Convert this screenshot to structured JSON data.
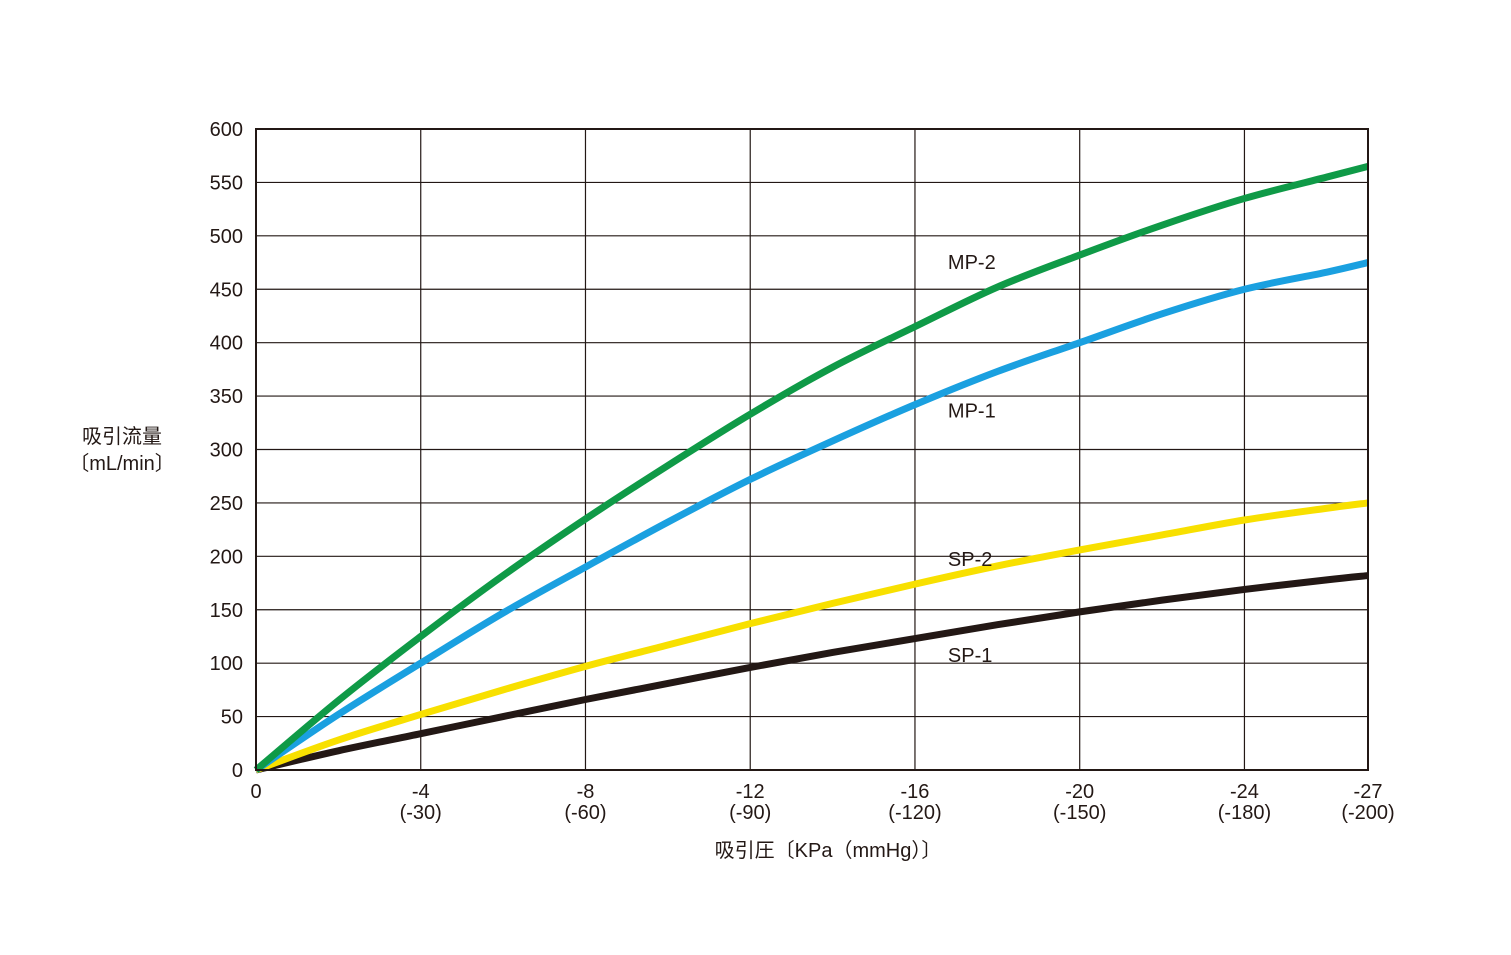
{
  "chart_data": {
    "type": "line",
    "title": "",
    "ylabel_line1": "吸引流量",
    "ylabel_line2": "〔mL/min〕",
    "xlabel": "吸引圧〔KPa（mmHg）〕",
    "ylim": [
      0,
      600
    ],
    "yticks": [
      0,
      50,
      100,
      150,
      200,
      250,
      300,
      350,
      400,
      450,
      500,
      550,
      600
    ],
    "xlim": [
      0,
      -27
    ],
    "xticks": [
      {
        "kpa": 0,
        "label": "0",
        "sub": ""
      },
      {
        "kpa": -4,
        "label": "-4",
        "sub": "(-30)"
      },
      {
        "kpa": -8,
        "label": "-8",
        "sub": "(-60)"
      },
      {
        "kpa": -12,
        "label": "-12",
        "sub": "(-90)"
      },
      {
        "kpa": -16,
        "label": "-16",
        "sub": "(-120)"
      },
      {
        "kpa": -20,
        "label": "-20",
        "sub": "(-150)"
      },
      {
        "kpa": -24,
        "label": "-24",
        "sub": "(-180)"
      },
      {
        "kpa": -27,
        "label": "-27",
        "sub": "(-200)"
      }
    ],
    "grid": true,
    "series": [
      {
        "name": "MP-2",
        "color": "#0f9a47",
        "x": [
          0,
          -2,
          -4,
          -6,
          -8,
          -10,
          -12,
          -14,
          -16,
          -18,
          -20,
          -22,
          -24,
          -26,
          -27
        ],
        "values": [
          0,
          65,
          125,
          182,
          235,
          285,
          333,
          377,
          415,
          452,
          482,
          510,
          535,
          555,
          565
        ]
      },
      {
        "name": "MP-1",
        "color": "#1aa0e0",
        "x": [
          0,
          -2,
          -4,
          -6,
          -8,
          -10,
          -12,
          -14,
          -16,
          -18,
          -20,
          -22,
          -24,
          -26,
          -27
        ],
        "values": [
          0,
          52,
          100,
          147,
          190,
          232,
          272,
          308,
          342,
          373,
          400,
          427,
          450,
          466,
          475
        ]
      },
      {
        "name": "SP-2",
        "color": "#f8e000",
        "x": [
          0,
          -2,
          -4,
          -6,
          -8,
          -10,
          -12,
          -14,
          -16,
          -18,
          -20,
          -22,
          -24,
          -26,
          -27
        ],
        "values": [
          0,
          28,
          52,
          75,
          97,
          117,
          137,
          156,
          174,
          191,
          206,
          220,
          234,
          245,
          250
        ]
      },
      {
        "name": "SP-1",
        "color": "#231815",
        "x": [
          0,
          -2,
          -4,
          -6,
          -8,
          -10,
          -12,
          -14,
          -16,
          -18,
          -20,
          -22,
          -24,
          -26,
          -27
        ],
        "values": [
          0,
          18,
          34,
          50,
          66,
          81,
          96,
          110,
          123,
          136,
          148,
          159,
          169,
          178,
          182
        ]
      }
    ],
    "series_labels": [
      {
        "series": "MP-2",
        "text": "MP-2",
        "x": -16.8,
        "y": 469
      },
      {
        "series": "MP-1",
        "text": "MP-1",
        "x": -16.8,
        "y": 330
      },
      {
        "series": "SP-2",
        "text": "SP-2",
        "x": -16.8,
        "y": 191
      },
      {
        "series": "SP-1",
        "text": "SP-1",
        "x": -16.8,
        "y": 101
      }
    ]
  }
}
